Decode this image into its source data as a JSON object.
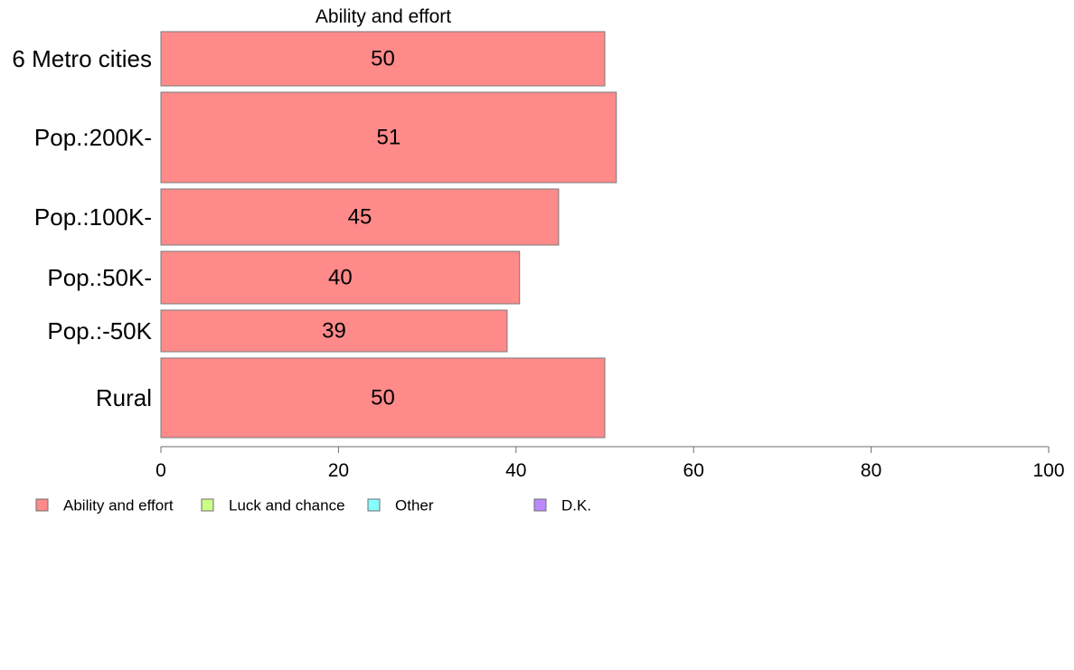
{
  "chart_data": {
    "type": "bar",
    "orientation": "horizontal",
    "title": "Ability and effort",
    "xlabel": "",
    "ylabel": "",
    "xlim": [
      0,
      100
    ],
    "xticks": [
      0,
      20,
      40,
      60,
      80,
      100
    ],
    "grid": false,
    "categories": [
      "6 Metro cities",
      "Pop.:200K-",
      "Pop.:100K-",
      "Pop.:50K-",
      "Pop.:-50K",
      "Rural"
    ],
    "category_weights": [
      0.6,
      1.0,
      0.62,
      0.58,
      0.46,
      0.88
    ],
    "series": [
      {
        "name": "Ability and effort",
        "color": "#ff8a8a",
        "values": [
          50,
          51.3,
          44.8,
          40.4,
          39,
          50
        ],
        "data_labels": [
          "50",
          "51",
          "45",
          "40",
          "39",
          "50"
        ]
      }
    ],
    "legend": {
      "placement": "bottom-left",
      "items": [
        {
          "label": "Ability and effort",
          "color": "#ff8a8a"
        },
        {
          "label": "Luck and chance",
          "color": "#ccff88"
        },
        {
          "label": "Other",
          "color": "#88ffff"
        },
        {
          "label": "D.K.",
          "color": "#bb88ff"
        }
      ]
    }
  }
}
